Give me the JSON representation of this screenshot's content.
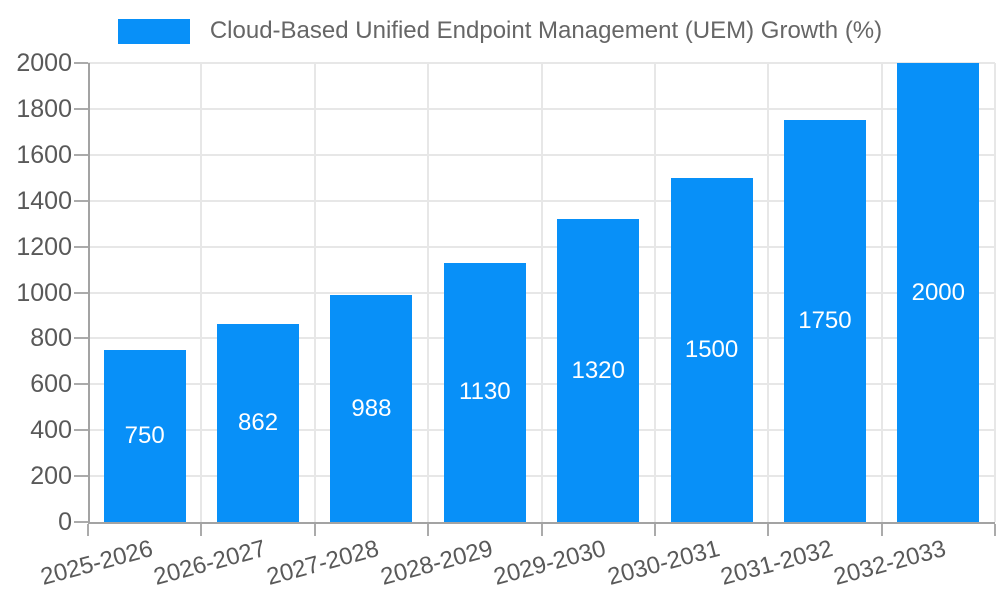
{
  "chart_data": {
    "type": "bar",
    "title": "Cloud-Based Unified Endpoint Management (UEM) Growth (%)",
    "categories": [
      "2025-2026",
      "2026-2027",
      "2027-2028",
      "2028-2029",
      "2029-2030",
      "2030-2031",
      "2031-2032",
      "2032-2033"
    ],
    "values": [
      750,
      862,
      988,
      1130,
      1320,
      1500,
      1750,
      2000
    ],
    "value_labels": [
      "750",
      "862",
      "988",
      "1130",
      "1320",
      "1500",
      "1750",
      "2000"
    ],
    "xlabel": "",
    "ylabel": "",
    "ylim": [
      0,
      2000
    ],
    "ytick_step": 200,
    "yticks": [
      0,
      200,
      400,
      600,
      800,
      1000,
      1200,
      1400,
      1600,
      1800,
      2000
    ],
    "grid": true,
    "legend_position": "top",
    "colors": {
      "bar": "#0890F8",
      "bar_value_label": "#FFFFFF",
      "axis_text": "#595959",
      "legend_text": "#666666",
      "gridline": "#E7E7E7",
      "axis_line": "#A3A3A3",
      "tick": "#ABABAB"
    }
  }
}
